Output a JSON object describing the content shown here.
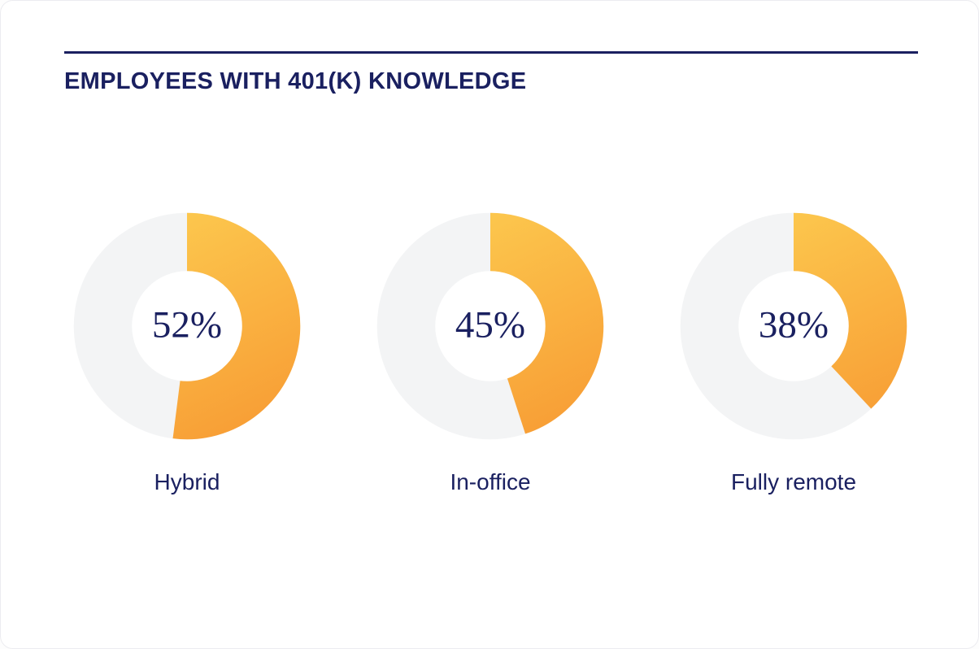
{
  "chart_data": {
    "type": "donut",
    "title": "EMPLOYEES WITH 401(K) KNOWLEDGE",
    "categories": [
      "Hybrid",
      "In-office",
      "Fully remote"
    ],
    "values": [
      52,
      45,
      38
    ],
    "value_labels": [
      "52%",
      "45%",
      "38%"
    ],
    "start_position": "12-oclock",
    "direction": "clockwise",
    "legend_position": "below-each",
    "colors": {
      "accent_navy": "#1A2060",
      "track_gray": "#F3F4F5",
      "arc_gradient_start": "#FCC84E",
      "arc_gradient_end": "#F89F36"
    }
  }
}
